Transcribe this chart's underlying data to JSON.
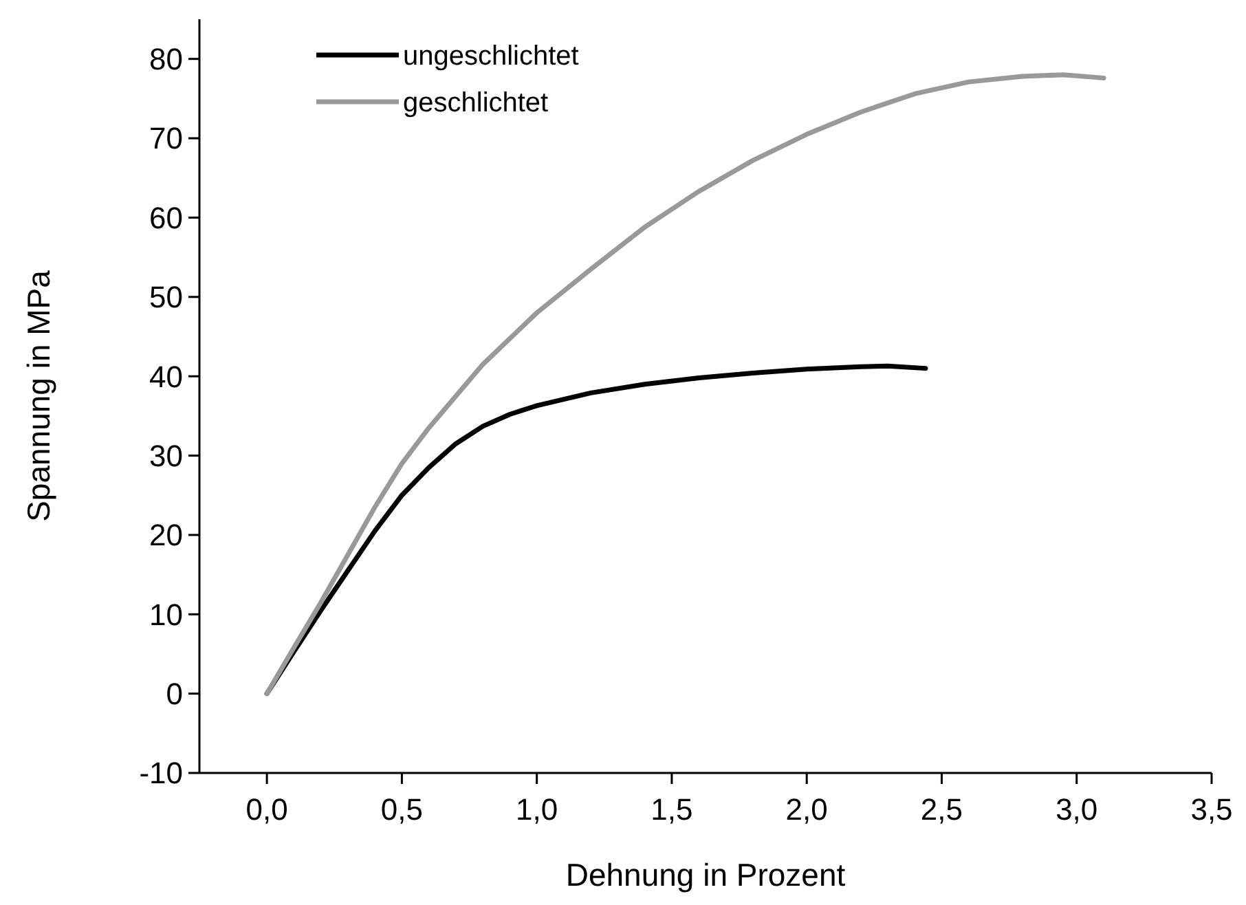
{
  "chart_data": {
    "type": "line",
    "xlabel": "Dehnung in Prozent",
    "ylabel": "Spannung in MPa",
    "xlim": [
      -0.25,
      3.5
    ],
    "ylim": [
      -10,
      85
    ],
    "xticks": [
      {
        "value": 0,
        "label": "0,0"
      },
      {
        "value": 0.5,
        "label": "0,5"
      },
      {
        "value": 1,
        "label": "1,0"
      },
      {
        "value": 1.5,
        "label": "1,5"
      },
      {
        "value": 2,
        "label": "2,0"
      },
      {
        "value": 2.5,
        "label": "2,5"
      },
      {
        "value": 3,
        "label": "3,0"
      },
      {
        "value": 3.5,
        "label": "3,5"
      }
    ],
    "yticks": [
      -10,
      0,
      10,
      20,
      30,
      40,
      50,
      60,
      70,
      80
    ],
    "legend": "top left",
    "grid": false,
    "marker": "none",
    "line_style": "solid",
    "series": [
      {
        "name": "ungeschlichtet",
        "color": "#000000",
        "x": [
          0,
          0.1,
          0.2,
          0.3,
          0.4,
          0.5,
          0.6,
          0.7,
          0.8,
          0.9,
          1.0,
          1.2,
          1.4,
          1.6,
          1.8,
          2.0,
          2.2,
          2.3,
          2.44
        ],
        "values": [
          0,
          5.3,
          10.5,
          15.5,
          20.5,
          25,
          28.5,
          31.5,
          33.7,
          35.2,
          36.3,
          37.9,
          39,
          39.8,
          40.4,
          40.9,
          41.2,
          41.3,
          41
        ]
      },
      {
        "name": "geschlichtet",
        "color": "#999999",
        "x": [
          0,
          0.1,
          0.2,
          0.3,
          0.4,
          0.5,
          0.6,
          0.8,
          1.0,
          1.2,
          1.4,
          1.6,
          1.8,
          2.0,
          2.2,
          2.4,
          2.6,
          2.8,
          2.95,
          3.1
        ],
        "values": [
          0,
          5.8,
          11.5,
          17.5,
          23.5,
          29,
          33.5,
          41.5,
          48,
          53.5,
          58.8,
          63.3,
          67.2,
          70.5,
          73.3,
          75.6,
          77.1,
          77.8,
          78,
          77.6
        ]
      }
    ]
  }
}
